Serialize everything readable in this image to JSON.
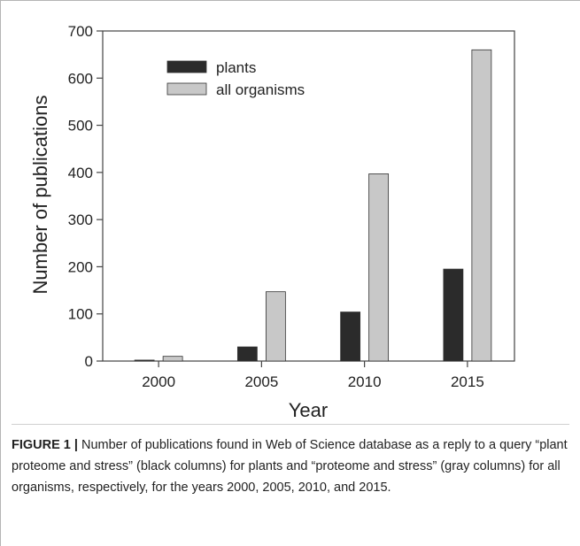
{
  "chart_data": {
    "type": "bar",
    "categories": [
      "2000",
      "2005",
      "2010",
      "2015"
    ],
    "series": [
      {
        "name": "plants",
        "values": [
          2,
          30,
          104,
          195
        ],
        "color": "#2b2b2b"
      },
      {
        "name": "all organisms",
        "values": [
          10,
          147,
          397,
          660
        ],
        "color": "#c8c8c8"
      }
    ],
    "title": "",
    "xlabel": "Year",
    "ylabel": "Number of publications",
    "ylim": [
      0,
      700
    ],
    "yticks": [
      0,
      100,
      200,
      300,
      400,
      500,
      600,
      700
    ],
    "grid": false,
    "legend_position": "top-left"
  },
  "caption": {
    "label": "FIGURE 1 |",
    "text": "Number of publications found in Web of Science database as a reply to a query “plant proteome and stress” (black columns) for plants and “proteome and stress” (gray columns) for all organisms, respectively, for the years 2000, 2005, 2010, and 2015."
  }
}
